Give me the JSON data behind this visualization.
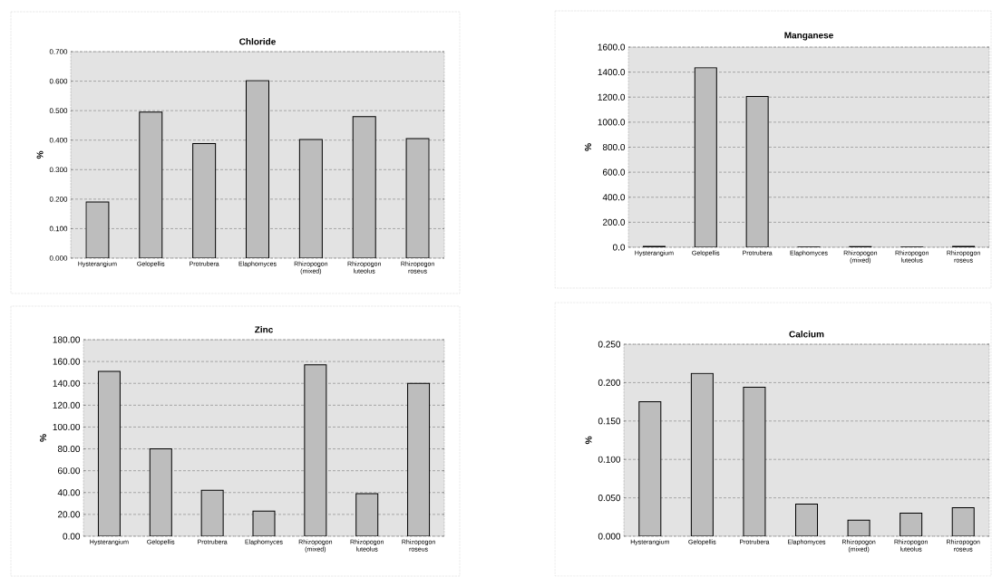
{
  "chart_data": [
    {
      "type": "bar",
      "title": "Chloride",
      "ylabel": "%",
      "categories": [
        "Hysterangium",
        "Gelopellis",
        "Protrubera",
        "Elaphomyces",
        "Rhizopogon (mixed)",
        "Rhizopogon luteolus",
        "Rhizopogon roseus"
      ],
      "values": [
        0.19,
        0.495,
        0.388,
        0.602,
        0.402,
        0.48,
        0.405
      ],
      "color": "#bdbdbd",
      "ylim": [
        0,
        0.7
      ],
      "yticks": [
        {
          "value": 0,
          "label": "0.000"
        },
        {
          "value": 0.1,
          "label": "0.100"
        },
        {
          "value": 0.2,
          "label": "0.200"
        },
        {
          "value": 0.3,
          "label": "0.300"
        },
        {
          "value": 0.4,
          "label": "0.400"
        },
        {
          "value": 0.5,
          "label": "0.500"
        },
        {
          "value": 0.6,
          "label": "0.600"
        },
        {
          "value": 0.7,
          "label": "0.700"
        }
      ],
      "grid": "y"
    },
    {
      "type": "bar",
      "title": "Manganese",
      "ylabel": "%",
      "categories": [
        "Hysterangium",
        "Gelopellis",
        "Protrubera",
        "Elaphomyces",
        "Rhizopogon (mixed)",
        "Rhizopogon luteolus",
        "Rhizopogon roseus"
      ],
      "values": [
        8,
        1435,
        1205,
        2,
        5,
        2,
        8
      ],
      "color": "#bdbdbd",
      "ylim": [
        0,
        1600
      ],
      "yticks": [
        {
          "value": 0,
          "label": "0.0"
        },
        {
          "value": 200,
          "label": "200.0"
        },
        {
          "value": 400,
          "label": "400.0"
        },
        {
          "value": 600,
          "label": "600.0"
        },
        {
          "value": 800,
          "label": "800.0"
        },
        {
          "value": 1000,
          "label": "1000.0"
        },
        {
          "value": 1200,
          "label": "1200.0"
        },
        {
          "value": 1400,
          "label": "1400.0"
        },
        {
          "value": 1600,
          "label": "1600.0"
        }
      ],
      "grid": "y"
    },
    {
      "type": "bar",
      "title": "Zinc",
      "ylabel": "%",
      "categories": [
        "Hysterangium",
        "Gelopellis",
        "Protrubera",
        "Elaphomyces",
        "Rhizopogon (mixed)",
        "Rhizopogon luteolus",
        "Rhizopogon roseus"
      ],
      "values": [
        151,
        80,
        42,
        23,
        157,
        39,
        140
      ],
      "color": "#bdbdbd",
      "ylim": [
        0,
        180
      ],
      "yticks": [
        {
          "value": 0,
          "label": "0.00"
        },
        {
          "value": 20,
          "label": "20.00"
        },
        {
          "value": 40,
          "label": "40.00"
        },
        {
          "value": 60,
          "label": "60.00"
        },
        {
          "value": 80,
          "label": "80.00"
        },
        {
          "value": 100,
          "label": "100.00"
        },
        {
          "value": 120,
          "label": "120.00"
        },
        {
          "value": 140,
          "label": "140.00"
        },
        {
          "value": 160,
          "label": "160.00"
        },
        {
          "value": 180,
          "label": "180.00"
        }
      ],
      "grid": "y"
    },
    {
      "type": "bar",
      "title": "Calcium",
      "ylabel": "%",
      "categories": [
        "Hysterangium",
        "Gelopellis",
        "Protrubera",
        "Elaphomyces",
        "Rhizopogon (mixed)",
        "Rhizopogon luteolus",
        "Rhizopogon roseus"
      ],
      "values": [
        0.175,
        0.212,
        0.194,
        0.042,
        0.021,
        0.03,
        0.037
      ],
      "color": "#bdbdbd",
      "ylim": [
        0,
        0.25
      ],
      "yticks": [
        {
          "value": 0,
          "label": "0.000"
        },
        {
          "value": 0.05,
          "label": "0.050"
        },
        {
          "value": 0.1,
          "label": "0.100"
        },
        {
          "value": 0.15,
          "label": "0.150"
        },
        {
          "value": 0.2,
          "label": "0.200"
        },
        {
          "value": 0.25,
          "label": "0.250"
        }
      ],
      "grid": "y"
    }
  ]
}
